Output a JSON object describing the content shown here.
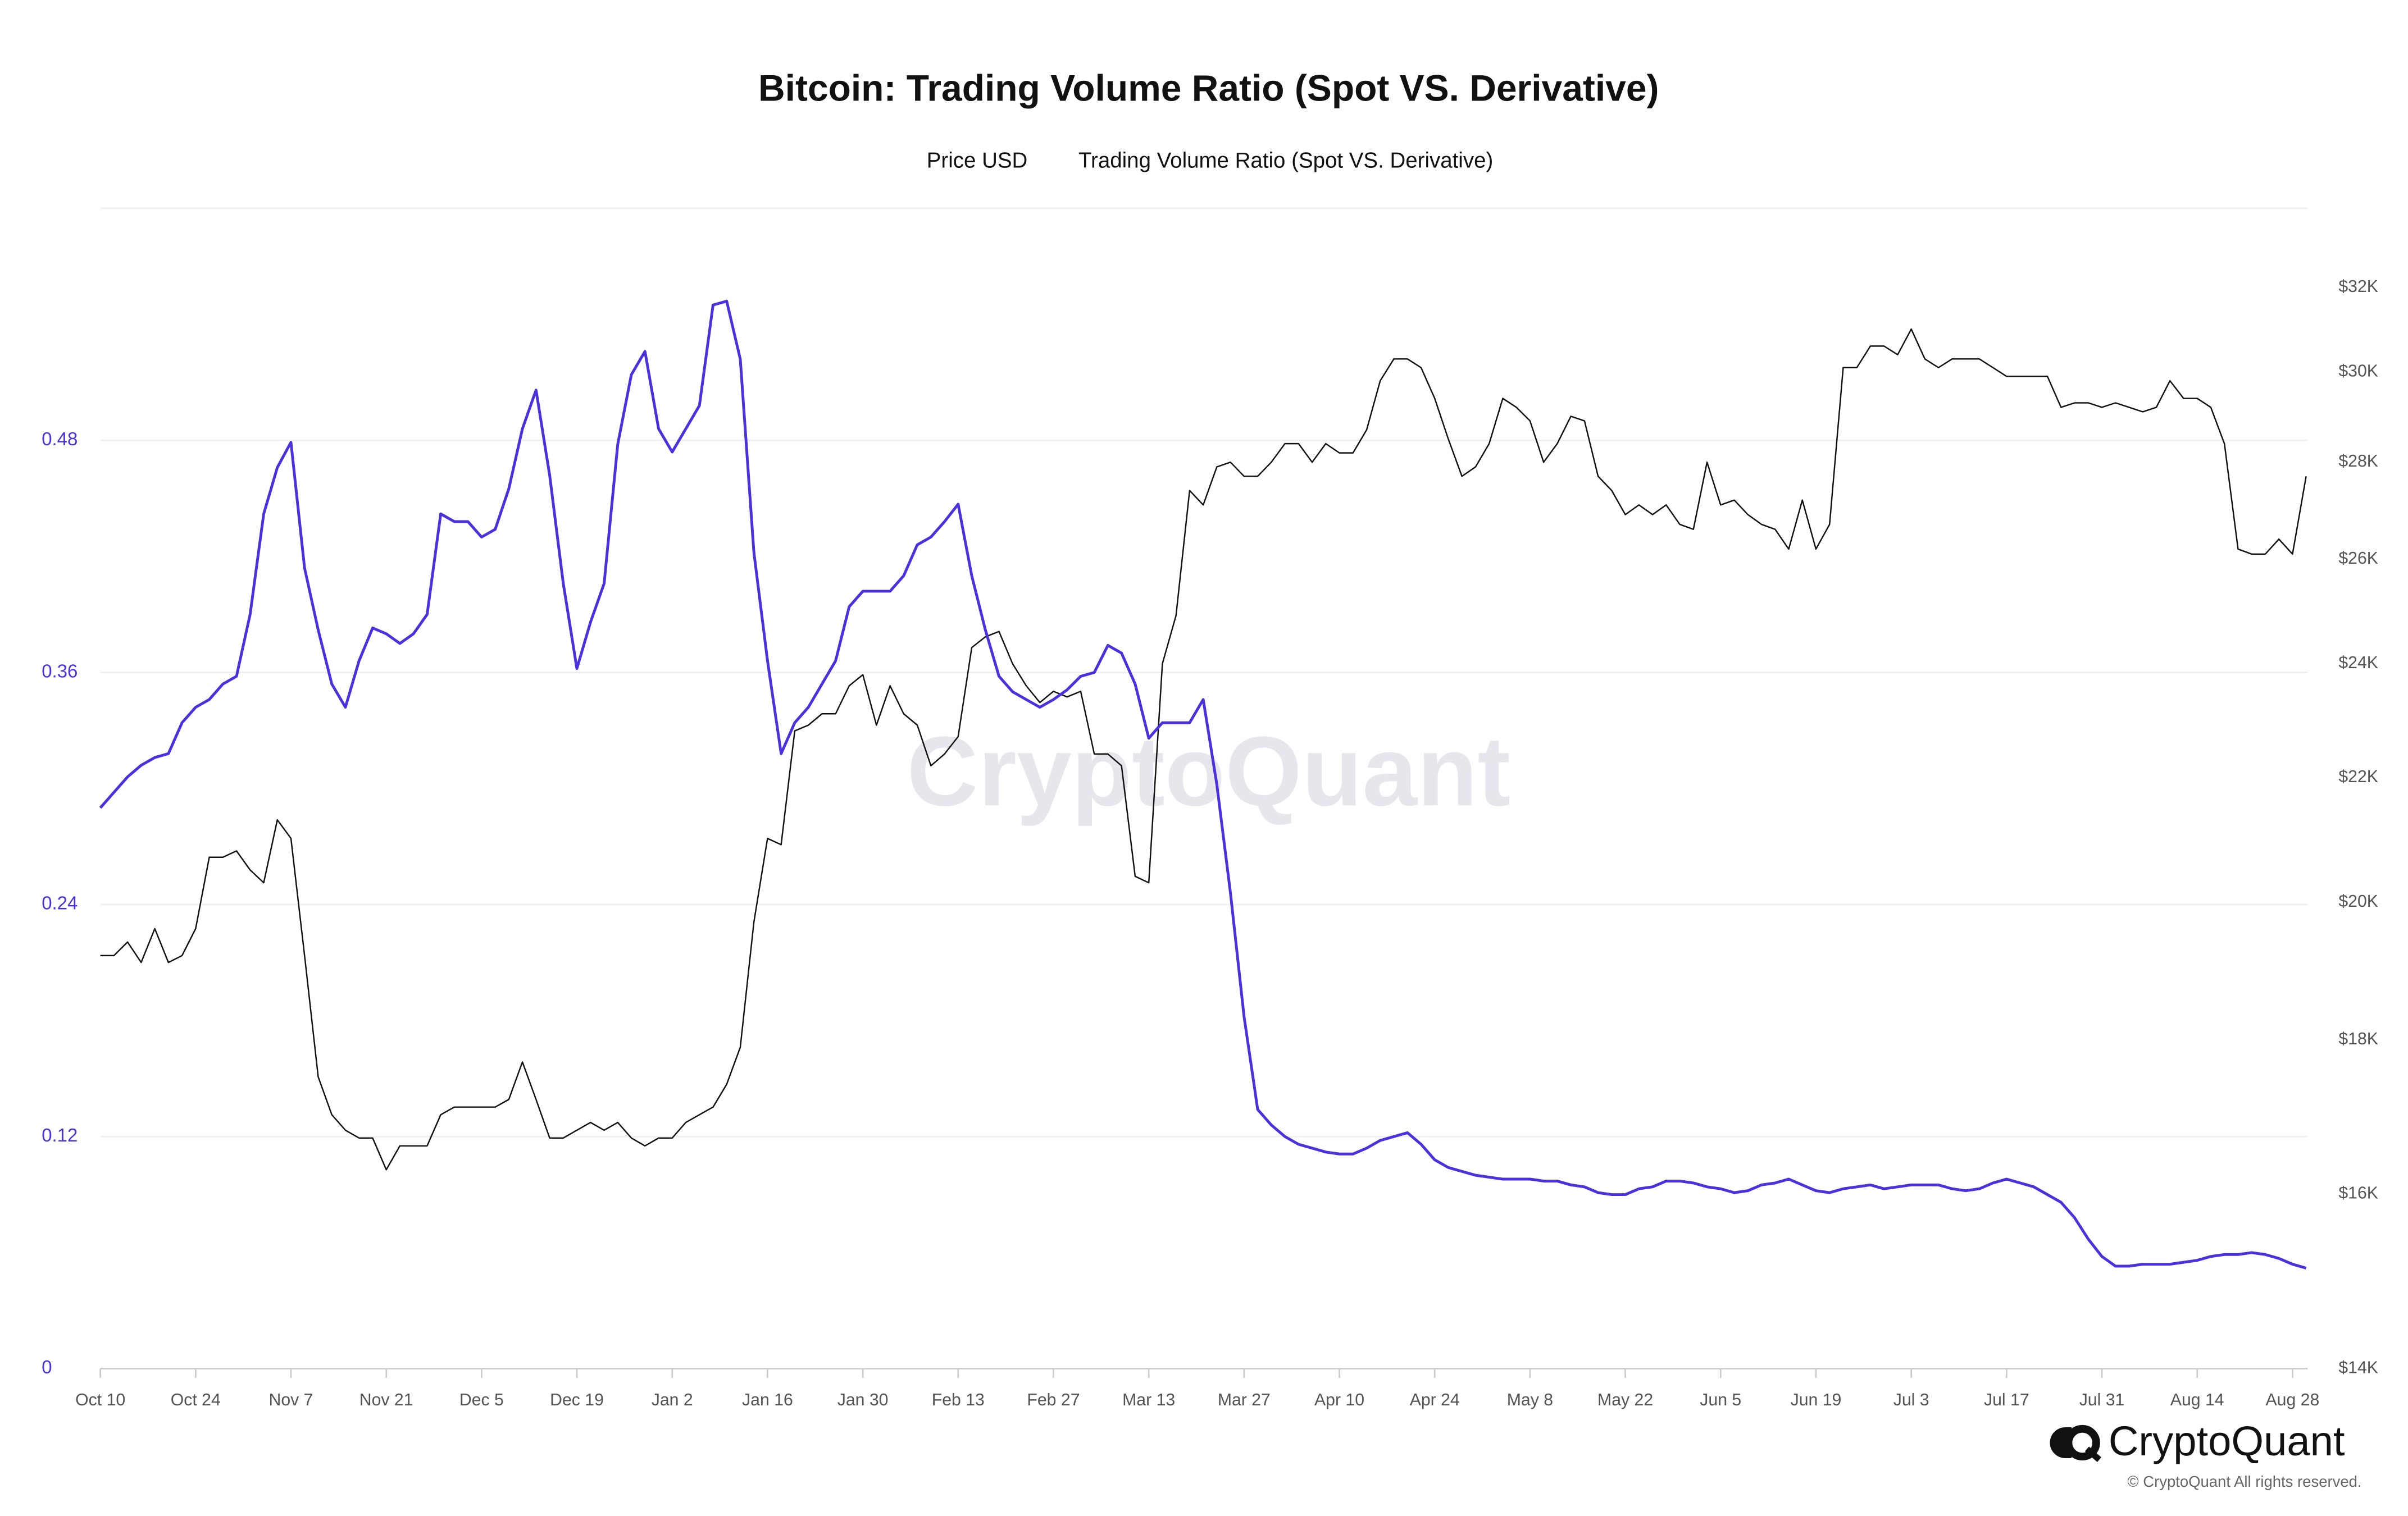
{
  "chart_data": {
    "type": "line",
    "title": "Bitcoin: Trading Volume Ratio (Spot VS. Derivative)",
    "watermark": "CryptoQuant",
    "brand": "CryptoQuant",
    "copyright": "© CryptoQuant All rights reserved.",
    "categories": [
      "Oct 10",
      null,
      null,
      null,
      null,
      null,
      null,
      "Oct 24",
      null,
      null,
      null,
      null,
      null,
      null,
      "Nov 7",
      null,
      null,
      null,
      null,
      null,
      null,
      "Nov 21",
      null,
      null,
      null,
      null,
      null,
      null,
      "Dec 5",
      null,
      null,
      null,
      null,
      null,
      null,
      "Dec 19",
      null,
      null,
      null,
      null,
      null,
      null,
      "Jan 2",
      null,
      null,
      null,
      null,
      null,
      null,
      "Jan 16",
      null,
      null,
      null,
      null,
      null,
      null,
      "Jan 30",
      null,
      null,
      null,
      null,
      null,
      null,
      "Feb 13",
      null,
      null,
      null,
      null,
      null,
      null,
      "Feb 27",
      null,
      null,
      null,
      null,
      null,
      null,
      "Mar 13",
      null,
      null,
      null,
      null,
      null,
      null,
      "Mar 27",
      null,
      null,
      null,
      null,
      null,
      null,
      "Apr 10",
      null,
      null,
      null,
      null,
      null,
      null,
      "Apr 24",
      null,
      null,
      null,
      null,
      null,
      null,
      "May 8",
      null,
      null,
      null,
      null,
      null,
      null,
      "May 22",
      null,
      null,
      null,
      null,
      null,
      null,
      "Jun 5",
      null,
      null,
      null,
      null,
      null,
      null,
      "Jun 19",
      null,
      null,
      null,
      null,
      null,
      null,
      "Jul 3",
      null,
      null,
      null,
      null,
      null,
      null,
      "Jul 17",
      null,
      null,
      null,
      null,
      null,
      null,
      "Jul 31",
      null,
      null,
      null,
      null,
      null,
      null,
      "Aug 14",
      null,
      null,
      null,
      null,
      null,
      null,
      "Aug 28",
      null
    ],
    "series": [
      {
        "name": "Price USD",
        "color": "#111111",
        "axis": "y2",
        "values": [
          19200,
          19200,
          19400,
          19100,
          19600,
          19100,
          19200,
          19600,
          20700,
          20700,
          20800,
          20500,
          20300,
          21300,
          21000,
          19200,
          17500,
          17000,
          16800,
          16700,
          16700,
          16300,
          16600,
          16600,
          16600,
          17000,
          17100,
          17100,
          17100,
          17100,
          17200,
          17700,
          17200,
          16700,
          16700,
          16800,
          16900,
          16800,
          16900,
          16700,
          16600,
          16700,
          16700,
          16900,
          17000,
          17100,
          17400,
          17900,
          19700,
          21000,
          20900,
          22800,
          22900,
          23100,
          23100,
          23600,
          23800,
          22900,
          23600,
          23100,
          22900,
          22200,
          22400,
          22700,
          24300,
          24500,
          24600,
          24000,
          23600,
          23300,
          23500,
          23400,
          23500,
          22400,
          22400,
          22200,
          20400,
          20300,
          24000,
          24900,
          27400,
          27100,
          27900,
          28000,
          27700,
          27700,
          28000,
          28400,
          28400,
          28000,
          28400,
          28200,
          28200,
          28700,
          29800,
          30300,
          30300,
          30100,
          29400,
          28500,
          27700,
          27900,
          28400,
          29400,
          29200,
          28900,
          28000,
          28400,
          29000,
          28900,
          27700,
          27400,
          26900,
          27100,
          26900,
          27100,
          26700,
          26600,
          28000,
          27100,
          27200,
          26900,
          26700,
          26600,
          26200,
          27200,
          26200,
          26700,
          30100,
          30100,
          30600,
          30600,
          30400,
          31000,
          30300,
          30100,
          30300,
          30300,
          30300,
          30100,
          29900,
          29900,
          29900,
          29900,
          29200,
          29300,
          29300,
          29200,
          29300,
          29200,
          29100,
          29200,
          29800,
          29400,
          29400,
          29200,
          28400,
          26200,
          26100,
          26100,
          26400,
          26100,
          27700
        ]
      },
      {
        "name": "Trading Volume Ratio (Spot VS. Derivative)",
        "color": "#4a31e0",
        "axis": "y",
        "values": [
          0.29,
          0.298,
          0.306,
          0.312,
          0.316,
          0.318,
          0.334,
          0.342,
          0.346,
          0.354,
          0.358,
          0.39,
          0.442,
          0.466,
          0.479,
          0.414,
          0.382,
          0.354,
          0.342,
          0.366,
          0.383,
          0.38,
          0.375,
          0.38,
          0.39,
          0.442,
          0.438,
          0.438,
          0.43,
          0.434,
          0.455,
          0.486,
          0.506,
          0.462,
          0.406,
          0.362,
          0.386,
          0.406,
          0.478,
          0.514,
          0.526,
          0.486,
          0.474,
          0.486,
          0.498,
          0.55,
          0.552,
          0.522,
          0.422,
          0.366,
          0.318,
          0.334,
          0.342,
          0.354,
          0.366,
          0.394,
          0.402,
          0.402,
          0.402,
          0.41,
          0.426,
          0.43,
          0.438,
          0.447,
          0.41,
          0.382,
          0.358,
          0.35,
          0.346,
          0.342,
          0.346,
          0.351,
          0.358,
          0.36,
          0.374,
          0.37,
          0.354,
          0.326,
          0.334,
          0.334,
          0.334,
          0.346,
          0.302,
          0.246,
          0.182,
          0.134,
          0.126,
          0.12,
          0.116,
          0.114,
          0.112,
          0.111,
          0.111,
          0.114,
          0.118,
          0.12,
          0.122,
          0.116,
          0.108,
          0.104,
          0.102,
          0.1,
          0.099,
          0.098,
          0.098,
          0.098,
          0.097,
          0.097,
          0.095,
          0.094,
          0.091,
          0.09,
          0.09,
          0.093,
          0.094,
          0.097,
          0.097,
          0.096,
          0.094,
          0.093,
          0.091,
          0.092,
          0.095,
          0.096,
          0.098,
          0.095,
          0.092,
          0.091,
          0.093,
          0.094,
          0.095,
          0.093,
          0.094,
          0.095,
          0.095,
          0.095,
          0.093,
          0.092,
          0.093,
          0.096,
          0.098,
          0.096,
          0.094,
          0.09,
          0.086,
          0.078,
          0.067,
          0.058,
          0.053,
          0.053,
          0.054,
          0.054,
          0.054,
          0.055,
          0.056,
          0.058,
          0.059,
          0.059,
          0.06,
          0.059,
          0.057,
          0.054,
          0.052
        ]
      }
    ],
    "ylim": [
      0,
      0.6
    ],
    "yticks": [
      0,
      0.12,
      0.24,
      0.36,
      0.48
    ],
    "y2lim": [
      14000,
      34000
    ],
    "y2scale": "log",
    "y2ticks": [
      {
        "value": 14000,
        "label": "$14K"
      },
      {
        "value": 16000,
        "label": "$16K"
      },
      {
        "value": 18000,
        "label": "$18K"
      },
      {
        "value": 20000,
        "label": "$20K"
      },
      {
        "value": 22000,
        "label": "$22K"
      },
      {
        "value": 24000,
        "label": "$24K"
      },
      {
        "value": 26000,
        "label": "$26K"
      },
      {
        "value": 28000,
        "label": "$28K"
      },
      {
        "value": 30000,
        "label": "$30K"
      },
      {
        "value": 32000,
        "label": "$32K"
      }
    ],
    "ytick_color": "#4a31e0",
    "grid": true
  }
}
